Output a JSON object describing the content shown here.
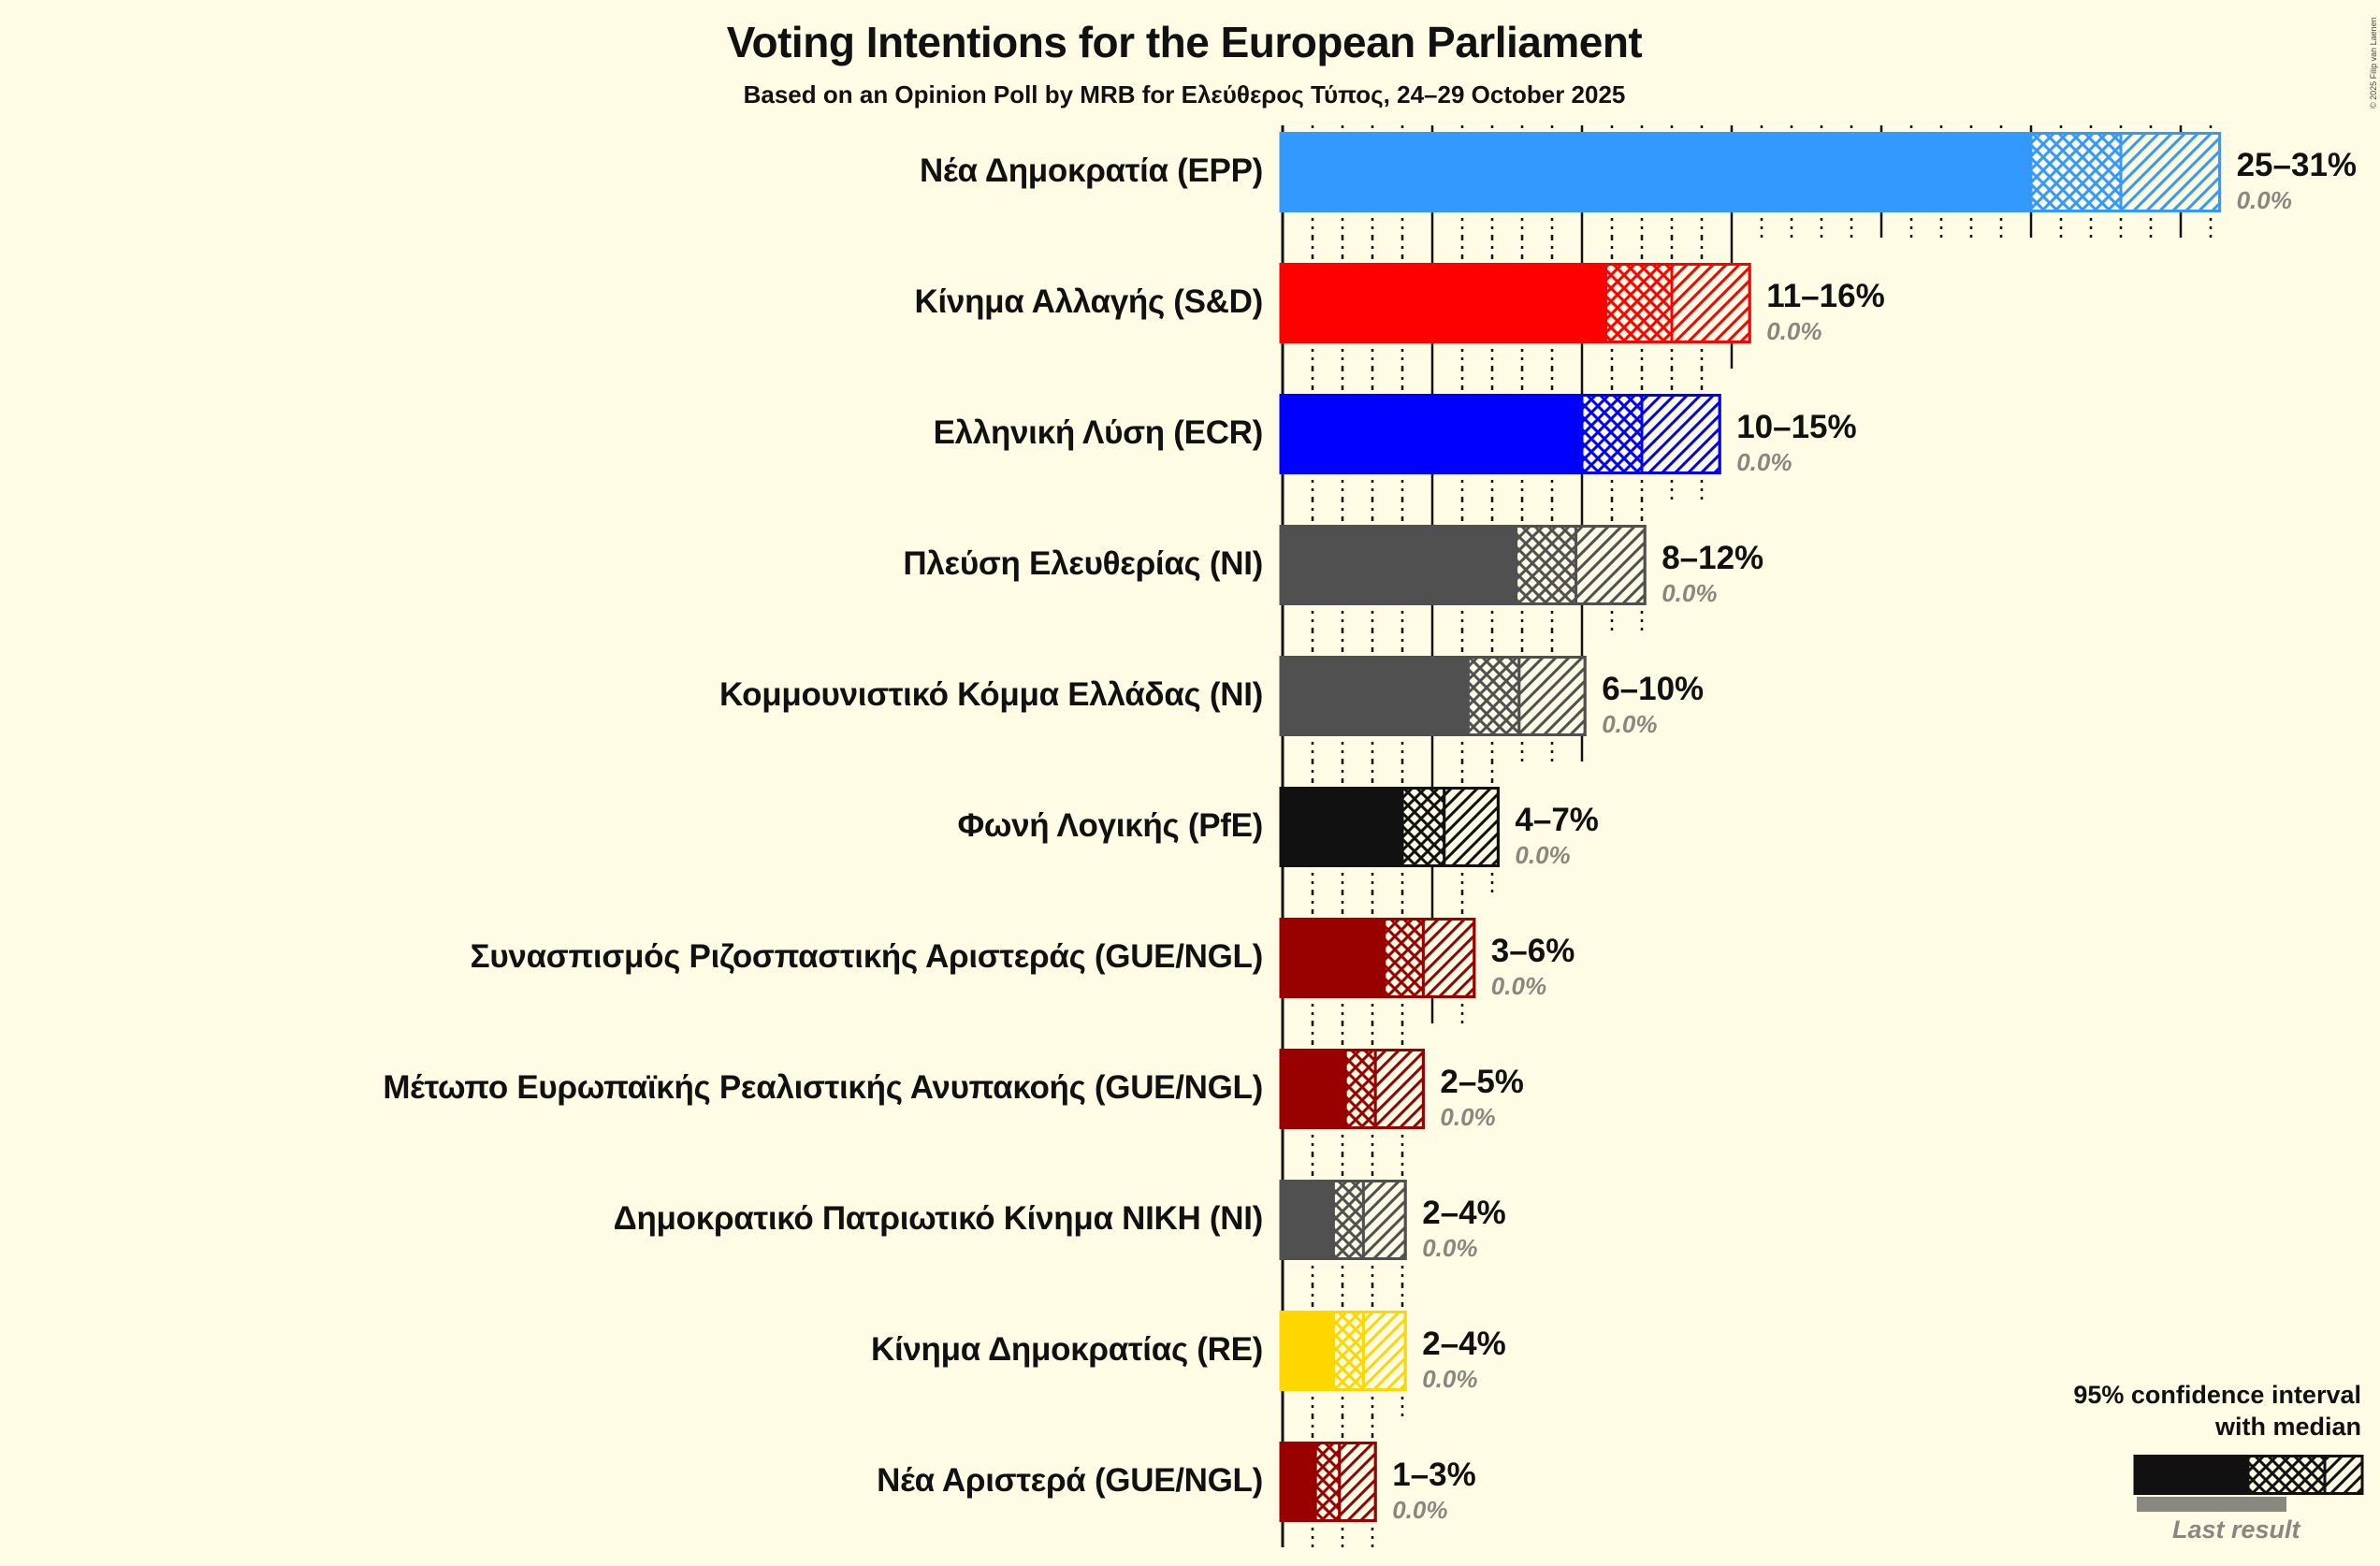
{
  "title": "Voting Intentions for the European Parliament",
  "subtitle": "Based on an Opinion Poll by MRB for Ελεύθερος Τύπος, 24–29 October 2025",
  "copyright": "© 2025 Filip van Laenen",
  "legend": {
    "title_line1": "95% confidence interval",
    "title_line2": "with median",
    "last_result": "Last result"
  },
  "colors": {
    "background": "#FFFCE6",
    "EPP": "#3399FF",
    "S&D": "#FF0000",
    "ECR": "#0000FF",
    "NI": "#505050",
    "PfE": "#111111",
    "GUE/NGL": "#990000",
    "RE": "#FFD700",
    "last_result": "#888880"
  },
  "chart_data": {
    "type": "bar",
    "orientation": "horizontal",
    "title": "Voting Intentions for the European Parliament",
    "subtitle": "Based on an Opinion Poll by MRB for Ελεύθερος Τύπος, 24–29 October 2025",
    "xlabel": "",
    "ylabel": "",
    "x_unit": "%",
    "grid": {
      "minor_step": 1,
      "major_step": 5,
      "minor_style": "dotted",
      "major_style": "solid"
    },
    "legend": "95% confidence interval with median; Last result",
    "categories": [
      "Νέα Δημοκρατία (EPP)",
      "Κίνημα Αλλαγής (S&D)",
      "Ελληνική Λύση (ECR)",
      "Πλεύση Ελευθερίας (NI)",
      "Κομμουνιστικό Κόμμα Ελλάδας (NI)",
      "Φωνή Λογικής (PfE)",
      "Συνασπισμός Ριζοσπαστικής Αριστεράς (GUE/NGL)",
      "Μέτωπο Ευρωπαϊκής Ρεαλιστικής Ανυπακοής (GUE/NGL)",
      "Δημοκρατικό Πατριωτικό Κίνημα ΝΙΚΗ (NI)",
      "Κίνημα Δημοκρατίας (RE)",
      "Νέα Αριστερά (GUE/NGL)"
    ],
    "series": [
      {
        "name": "ci_low",
        "values": [
          25.0,
          10.8,
          10.0,
          7.8,
          6.2,
          4.0,
          3.4,
          2.1,
          1.7,
          1.7,
          1.1
        ]
      },
      {
        "name": "median",
        "values": [
          28.0,
          13.0,
          12.0,
          9.8,
          7.9,
          5.4,
          4.7,
          3.1,
          2.7,
          2.7,
          1.9
        ]
      },
      {
        "name": "ci_high",
        "values": [
          31.3,
          15.6,
          14.6,
          12.1,
          10.1,
          7.2,
          6.4,
          4.7,
          4.1,
          4.1,
          3.1
        ]
      },
      {
        "name": "last_result",
        "values": [
          0,
          0,
          0,
          0,
          0,
          0,
          0,
          0,
          0,
          0,
          0
        ]
      }
    ],
    "rows": [
      {
        "name": "Νέα Δημοκρατία (EPP)",
        "group": "EPP",
        "color": "#3399FF",
        "low": 25.0,
        "median": 28.0,
        "high": 31.3,
        "range_label": "25–31%",
        "last_label": "0.0%"
      },
      {
        "name": "Κίνημα Αλλαγής (S&D)",
        "group": "S&D",
        "color": "#FF0000",
        "low": 10.8,
        "median": 13.0,
        "high": 15.6,
        "range_label": "11–16%",
        "last_label": "0.0%"
      },
      {
        "name": "Ελληνική Λύση (ECR)",
        "group": "ECR",
        "color": "#0000FF",
        "low": 10.0,
        "median": 12.0,
        "high": 14.6,
        "range_label": "10–15%",
        "last_label": "0.0%"
      },
      {
        "name": "Πλεύση Ελευθερίας (NI)",
        "group": "NI",
        "color": "#505050",
        "low": 7.8,
        "median": 9.8,
        "high": 12.1,
        "range_label": "8–12%",
        "last_label": "0.0%"
      },
      {
        "name": "Κομμουνιστικό Κόμμα Ελλάδας (NI)",
        "group": "NI",
        "color": "#505050",
        "low": 6.2,
        "median": 7.9,
        "high": 10.1,
        "range_label": "6–10%",
        "last_label": "0.0%"
      },
      {
        "name": "Φωνή Λογικής (PfE)",
        "group": "PfE",
        "color": "#111111",
        "low": 4.0,
        "median": 5.4,
        "high": 7.2,
        "range_label": "4–7%",
        "last_label": "0.0%"
      },
      {
        "name": "Συνασπισμός Ριζοσπαστικής Αριστεράς (GUE/NGL)",
        "group": "GUE/NGL",
        "color": "#990000",
        "low": 3.4,
        "median": 4.7,
        "high": 6.4,
        "range_label": "3–6%",
        "last_label": "0.0%"
      },
      {
        "name": "Μέτωπο Ευρωπαϊκής Ρεαλιστικής Ανυπακοής (GUE/NGL)",
        "group": "GUE/NGL",
        "color": "#990000",
        "low": 2.1,
        "median": 3.1,
        "high": 4.7,
        "range_label": "2–5%",
        "last_label": "0.0%"
      },
      {
        "name": "Δημοκρατικό Πατριωτικό Κίνημα ΝΙΚΗ (NI)",
        "group": "NI",
        "color": "#505050",
        "low": 1.7,
        "median": 2.7,
        "high": 4.1,
        "range_label": "2–4%",
        "last_label": "0.0%"
      },
      {
        "name": "Κίνημα Δημοκρατίας (RE)",
        "group": "RE",
        "color": "#FFD700",
        "low": 1.7,
        "median": 2.7,
        "high": 4.1,
        "range_label": "2–4%",
        "last_label": "0.0%"
      },
      {
        "name": "Νέα Αριστερά (GUE/NGL)",
        "group": "GUE/NGL",
        "color": "#990000",
        "low": 1.1,
        "median": 1.9,
        "high": 3.1,
        "range_label": "1–3%",
        "last_label": "0.0%"
      }
    ]
  }
}
